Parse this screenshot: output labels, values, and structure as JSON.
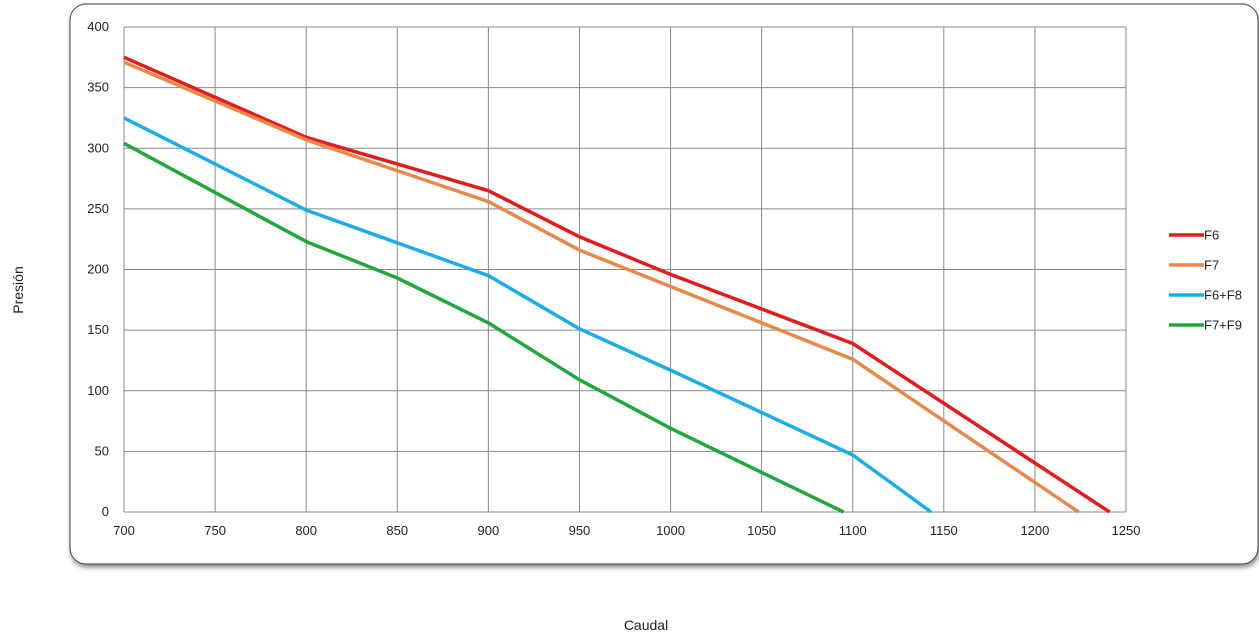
{
  "chart_data": {
    "type": "line",
    "title": "",
    "xlabel": "Caudal",
    "ylabel": "Presión",
    "xlim": [
      700,
      1250
    ],
    "ylim": [
      0,
      400
    ],
    "xticks": [
      700,
      750,
      800,
      850,
      900,
      950,
      1000,
      1050,
      1100,
      1150,
      1200,
      1250
    ],
    "yticks": [
      0,
      50,
      100,
      150,
      200,
      250,
      300,
      350,
      400
    ],
    "grid": true,
    "legend": "right",
    "series": [
      {
        "name": "F6",
        "color": "#e41a1c",
        "x": [
          700,
          800,
          900,
          950,
          1000,
          1100,
          1241
        ],
        "y": [
          375,
          309,
          265,
          227,
          196,
          139,
          0
        ]
      },
      {
        "name": "F7",
        "color": "#e6894a",
        "x": [
          700,
          800,
          900,
          950,
          1000,
          1100,
          1224
        ],
        "y": [
          371,
          307,
          256,
          216,
          186,
          126,
          0
        ]
      },
      {
        "name": "F6+F8",
        "color": "#19aee8",
        "x": [
          700,
          800,
          900,
          950,
          1000,
          1100,
          1143
        ],
        "y": [
          325,
          249,
          195,
          151,
          117,
          47,
          0
        ]
      },
      {
        "name": "F7+F9",
        "color": "#1fa83c",
        "x": [
          700,
          800,
          850,
          900,
          950,
          1000,
          1095
        ],
        "y": [
          304,
          223,
          193,
          156,
          109,
          69,
          0
        ]
      }
    ]
  }
}
